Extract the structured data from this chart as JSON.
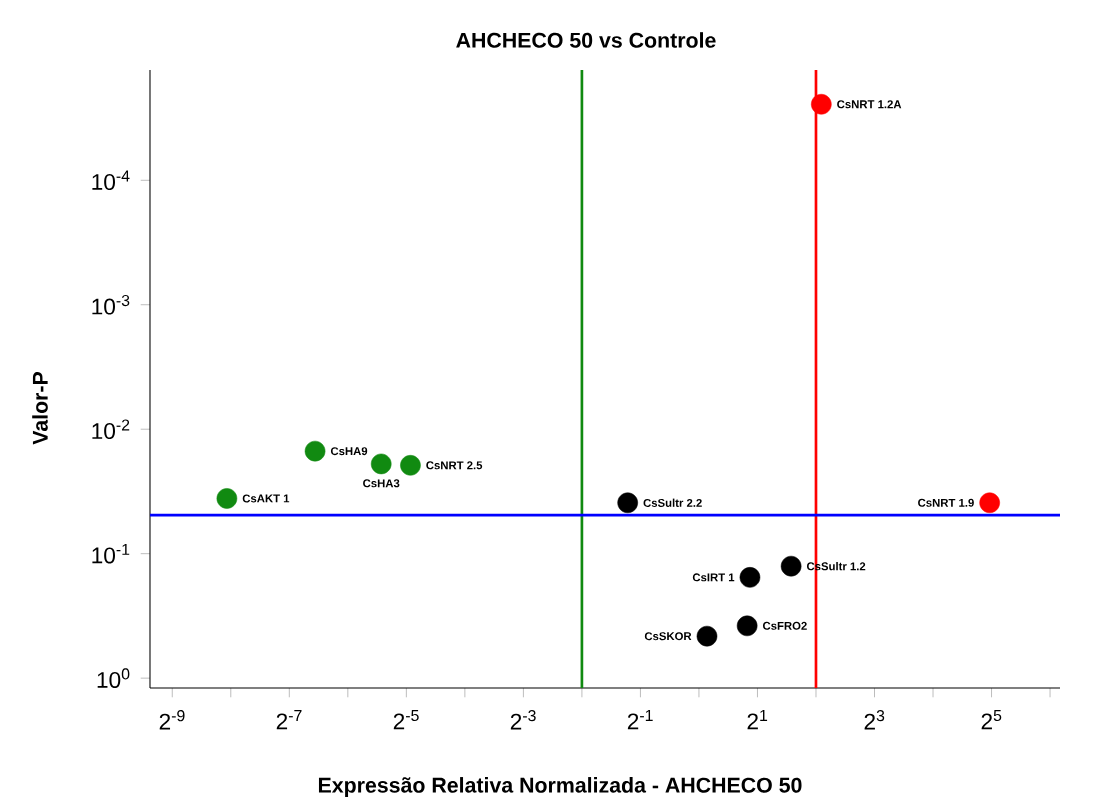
{
  "chart_data": {
    "type": "scatter",
    "title": "AHCHECO 50 vs Controle",
    "xlabel": "Expressão Relativa Normalizada - AHCHECO 50",
    "ylabel": "Valor-P",
    "log": "xy",
    "marker": "circle",
    "grid": false,
    "xlim": [
      0.0015,
      72
    ],
    "ylim": [
      1.2,
      1.3e-05
    ],
    "xticks": [
      {
        "value": 0.001953125,
        "label": "2$^{-9}$"
      },
      {
        "value": 0.00390625,
        "label": null
      },
      {
        "value": 0.0078125,
        "label": "2$^{-7}$"
      },
      {
        "value": 0.015625,
        "label": null
      },
      {
        "value": 0.03125,
        "label": "2$^{-5}$"
      },
      {
        "value": 0.0625,
        "label": null
      },
      {
        "value": 0.125,
        "label": "2$^{-3}$"
      },
      {
        "value": 0.25,
        "label": null
      },
      {
        "value": 0.5,
        "label": "2$^{-1}$"
      },
      {
        "value": 1,
        "label": null
      },
      {
        "value": 2,
        "label": "2$^{1}$"
      },
      {
        "value": 4,
        "label": null
      },
      {
        "value": 8,
        "label": "2$^{3}$"
      },
      {
        "value": 16,
        "label": null
      },
      {
        "value": 32,
        "label": "2$^{5}$"
      },
      {
        "value": 64,
        "label": null
      }
    ],
    "yticks": [
      {
        "value": 1,
        "label": "10$^{0}$"
      },
      {
        "value": 0.1,
        "label": "10$^{-1}$"
      },
      {
        "value": 0.01,
        "label": "10$^{-2}$"
      },
      {
        "value": 0.001,
        "label": "10$^{-3}$"
      },
      {
        "value": 0.0001,
        "label": "10$^{-4}$"
      }
    ],
    "series": [
      {
        "color": "#118a11",
        "x": [
          0.00373,
          0.0106,
          0.0232,
          0.0328
        ],
        "values": [
          0.036,
          0.015,
          0.019,
          0.0195
        ]
      },
      {
        "color": "#000000",
        "x": [
          0.43,
          1.83,
          2.98,
          1.77,
          1.1
        ],
        "values": [
          0.039,
          0.155,
          0.126,
          0.38,
          0.46
        ]
      },
      {
        "color": "#ff0000",
        "x": [
          4.26,
          31.3
        ],
        "values": [
          2.45e-05,
          0.039
        ]
      }
    ],
    "ref_lines": [
      {
        "axis": "x",
        "value": 0.25,
        "color": "#118a11"
      },
      {
        "axis": "x",
        "value": 4,
        "color": "#ff0000"
      },
      {
        "axis": "y",
        "value": 0.049,
        "color": "#0000ff"
      }
    ],
    "annotations": [
      {
        "text": "CsNRT 1.2A",
        "x": 4.26,
        "y": 2.45e-05
      },
      {
        "text": "CsNRT 1.9",
        "x": 31.3,
        "y": 0.039
      },
      {
        "text": "CsAKT 1",
        "x": 0.00373,
        "y": 0.036
      },
      {
        "text": "CsHA9",
        "x": 0.0106,
        "y": 0.015
      },
      {
        "text": "CsHA3",
        "x": 0.0232,
        "y": 0.019
      },
      {
        "text": "CsNRT 2.5",
        "x": 0.0328,
        "y": 0.0195
      },
      {
        "text": "CsSultr 2.2",
        "x": 0.43,
        "y": 0.039
      },
      {
        "text": "CsIRT 1",
        "x": 1.83,
        "y": 0.155
      },
      {
        "text": "CsSultr 1.2",
        "x": 2.98,
        "y": 0.126
      },
      {
        "text": "CsFRO2",
        "x": 1.77,
        "y": 0.38
      },
      {
        "text": "CsSKOR",
        "x": 1.1,
        "y": 0.46
      }
    ]
  }
}
